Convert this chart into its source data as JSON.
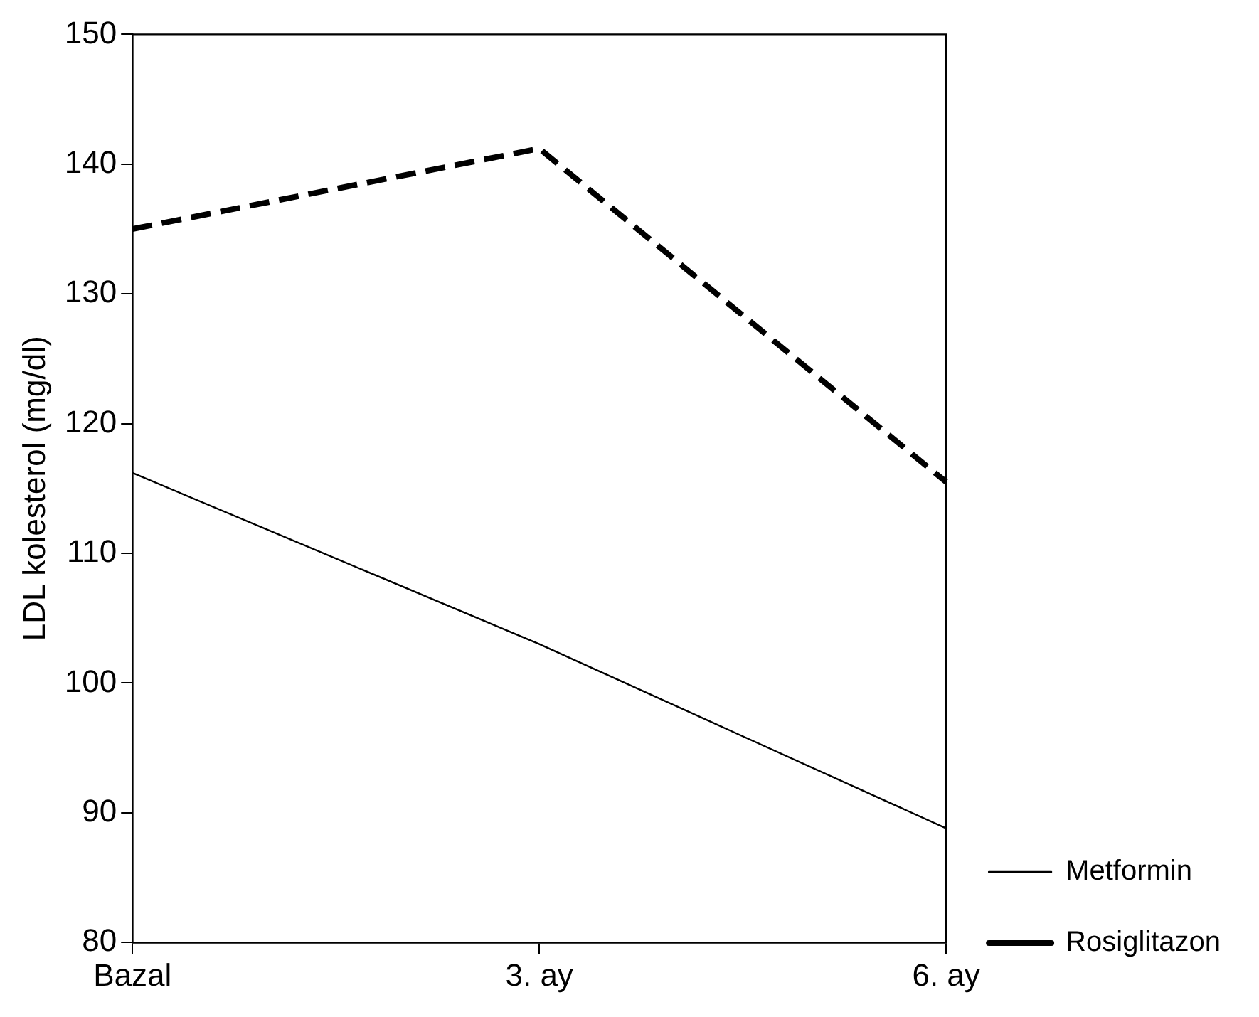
{
  "chart_data": {
    "type": "line",
    "ylabel": "LDL kolesterol (mg/dl)",
    "categories": [
      "Bazal",
      "3. ay",
      "6. ay"
    ],
    "series": [
      {
        "name": "Metformin",
        "color": "#000000",
        "line_style": "solid",
        "values": [
          116.2,
          103,
          88.8
        ]
      },
      {
        "name": "Rosiglitazon",
        "color": "#000000",
        "line_style": "dashed",
        "values": [
          135,
          141.2,
          115.5
        ]
      }
    ],
    "ylim": [
      80,
      150
    ],
    "yticks": [
      80,
      90,
      100,
      110,
      120,
      130,
      140,
      150
    ],
    "grid": false,
    "legend": "right",
    "marker": "none"
  }
}
